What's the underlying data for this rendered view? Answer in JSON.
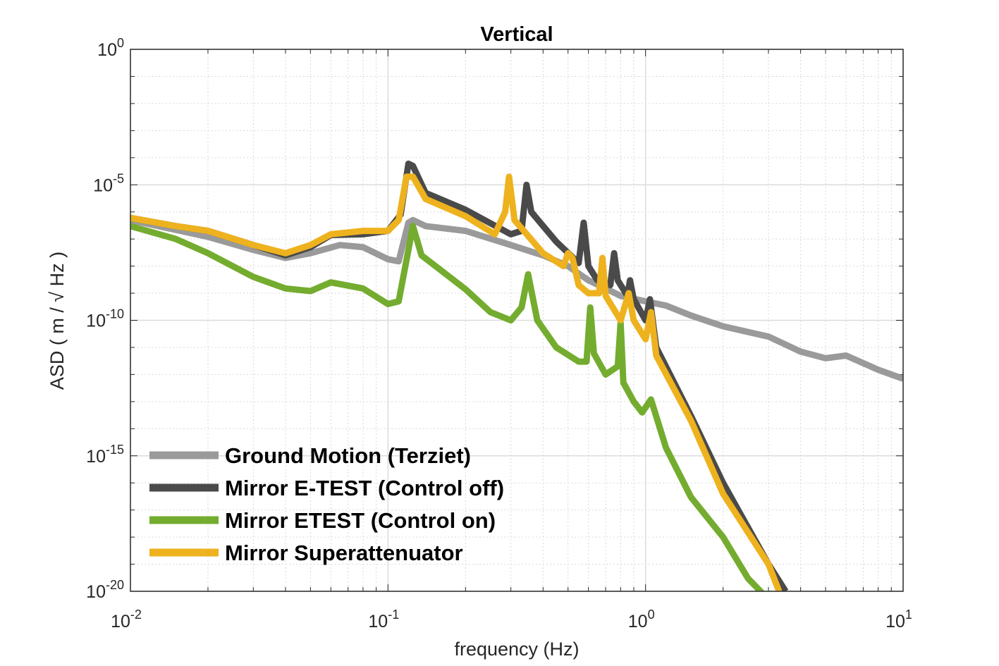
{
  "chart_data": {
    "type": "line",
    "title": "Vertical",
    "xlabel": "frequency (Hz)",
    "ylabel": "ASD ( m / √ Hz )",
    "xscale": "log",
    "yscale": "log",
    "xlim": [
      0.01,
      10
    ],
    "ylim": [
      1e-20,
      1
    ],
    "grid": true,
    "legend_position": "bottom-left",
    "x_ticks": [
      {
        "base": "10",
        "exp": "-2"
      },
      {
        "base": "10",
        "exp": "-1"
      },
      {
        "base": "10",
        "exp": "0"
      },
      {
        "base": "10",
        "exp": "1"
      }
    ],
    "y_ticks": [
      {
        "base": "10",
        "exp": "0"
      },
      {
        "base": "10",
        "exp": "-5"
      },
      {
        "base": "10",
        "exp": "-10"
      },
      {
        "base": "10",
        "exp": "-15"
      },
      {
        "base": "10",
        "exp": "-20"
      }
    ],
    "series": [
      {
        "name": "Ground Motion (Terziet)",
        "color": "#9a9a9a",
        "points": [
          [
            0.01,
            5e-07
          ],
          [
            0.014,
            2.5e-07
          ],
          [
            0.02,
            1.2e-07
          ],
          [
            0.03,
            4e-08
          ],
          [
            0.04,
            2e-08
          ],
          [
            0.05,
            3e-08
          ],
          [
            0.065,
            6e-08
          ],
          [
            0.08,
            5e-08
          ],
          [
            0.1,
            1.8e-08
          ],
          [
            0.11,
            1.5e-08
          ],
          [
            0.115,
            8e-08
          ],
          [
            0.12,
            4e-07
          ],
          [
            0.125,
            5e-07
          ],
          [
            0.14,
            3e-07
          ],
          [
            0.2,
            2e-07
          ],
          [
            0.3,
            6e-08
          ],
          [
            0.4,
            2.5e-08
          ],
          [
            0.5,
            1e-08
          ],
          [
            0.6,
            3e-09
          ],
          [
            0.7,
            1.5e-09
          ],
          [
            0.8,
            8e-10
          ],
          [
            1.0,
            5e-10
          ],
          [
            1.2,
            3.5e-10
          ],
          [
            1.5,
            1.5e-10
          ],
          [
            2.0,
            6e-11
          ],
          [
            3.0,
            2.5e-11
          ],
          [
            4.0,
            7e-12
          ],
          [
            5.0,
            4e-12
          ],
          [
            6.0,
            5e-12
          ],
          [
            8.0,
            1.5e-12
          ],
          [
            10.0,
            7e-13
          ]
        ]
      },
      {
        "name": "Mirror E-TEST (Control off)",
        "color": "#4a4a4a",
        "points": [
          [
            0.01,
            6e-07
          ],
          [
            0.015,
            3e-07
          ],
          [
            0.02,
            2e-07
          ],
          [
            0.03,
            6e-08
          ],
          [
            0.04,
            2.5e-08
          ],
          [
            0.05,
            5e-08
          ],
          [
            0.06,
            1.4e-07
          ],
          [
            0.08,
            1.5e-07
          ],
          [
            0.1,
            2e-07
          ],
          [
            0.112,
            8e-07
          ],
          [
            0.12,
            6e-05
          ],
          [
            0.125,
            5e-05
          ],
          [
            0.14,
            5e-06
          ],
          [
            0.2,
            1.2e-06
          ],
          [
            0.3,
            1.5e-07
          ],
          [
            0.33,
            2e-07
          ],
          [
            0.345,
            1e-05
          ],
          [
            0.36,
            1e-06
          ],
          [
            0.45,
            8e-08
          ],
          [
            0.55,
            1.3e-08
          ],
          [
            0.575,
            4e-07
          ],
          [
            0.6,
            1e-08
          ],
          [
            0.65,
            3e-09
          ],
          [
            0.73,
            2e-09
          ],
          [
            0.755,
            3e-08
          ],
          [
            0.78,
            3e-09
          ],
          [
            0.85,
            8e-10
          ],
          [
            0.87,
            3e-09
          ],
          [
            0.9,
            6e-10
          ],
          [
            1.0,
            1e-10
          ],
          [
            1.04,
            6e-10
          ],
          [
            1.1,
            1e-11
          ],
          [
            1.5,
            3e-14
          ],
          [
            2.0,
            1e-16
          ],
          [
            3.0,
            1e-19
          ],
          [
            3.5,
            1e-20
          ]
        ]
      },
      {
        "name": "Mirror ETEST (Control on)",
        "color": "#74ac2f",
        "points": [
          [
            0.01,
            3e-07
          ],
          [
            0.015,
            1e-07
          ],
          [
            0.02,
            3e-08
          ],
          [
            0.03,
            4e-09
          ],
          [
            0.04,
            1.5e-09
          ],
          [
            0.05,
            1.2e-09
          ],
          [
            0.06,
            2.5e-09
          ],
          [
            0.08,
            1.5e-09
          ],
          [
            0.1,
            4e-10
          ],
          [
            0.11,
            5e-10
          ],
          [
            0.125,
            3e-07
          ],
          [
            0.135,
            2.5e-08
          ],
          [
            0.2,
            1.4e-09
          ],
          [
            0.25,
            2e-10
          ],
          [
            0.3,
            1e-10
          ],
          [
            0.33,
            3e-10
          ],
          [
            0.35,
            5e-09
          ],
          [
            0.38,
            1e-10
          ],
          [
            0.45,
            1e-11
          ],
          [
            0.55,
            3e-12
          ],
          [
            0.59,
            3e-12
          ],
          [
            0.61,
            3e-10
          ],
          [
            0.63,
            6e-12
          ],
          [
            0.7,
            1e-12
          ],
          [
            0.78,
            2e-12
          ],
          [
            0.8,
            8e-11
          ],
          [
            0.82,
            5e-13
          ],
          [
            0.9,
            1e-13
          ],
          [
            0.97,
            4e-14
          ],
          [
            1.05,
            1.2e-13
          ],
          [
            1.2,
            2e-15
          ],
          [
            1.5,
            3e-17
          ],
          [
            2.0,
            1e-18
          ],
          [
            2.5,
            3e-20
          ],
          [
            3.0,
            5e-21
          ]
        ]
      },
      {
        "name": "Mirror Superattenuator",
        "color": "#eeb21e",
        "points": [
          [
            0.01,
            6e-07
          ],
          [
            0.015,
            3e-07
          ],
          [
            0.02,
            2e-07
          ],
          [
            0.03,
            6e-08
          ],
          [
            0.04,
            3e-08
          ],
          [
            0.05,
            6e-08
          ],
          [
            0.06,
            1.5e-07
          ],
          [
            0.08,
            2e-07
          ],
          [
            0.1,
            2e-07
          ],
          [
            0.11,
            5e-07
          ],
          [
            0.118,
            2e-05
          ],
          [
            0.125,
            2e-05
          ],
          [
            0.14,
            3e-06
          ],
          [
            0.2,
            7e-07
          ],
          [
            0.26,
            1.5e-07
          ],
          [
            0.285,
            1e-06
          ],
          [
            0.295,
            2e-05
          ],
          [
            0.31,
            5e-07
          ],
          [
            0.4,
            3e-08
          ],
          [
            0.48,
            1e-08
          ],
          [
            0.5,
            3e-08
          ],
          [
            0.52,
            2e-08
          ],
          [
            0.55,
            2e-09
          ],
          [
            0.6,
            1e-09
          ],
          [
            0.66,
            1e-09
          ],
          [
            0.68,
            2e-08
          ],
          [
            0.7,
            8e-10
          ],
          [
            0.8,
            1e-10
          ],
          [
            0.86,
            1e-09
          ],
          [
            0.9,
            1e-10
          ],
          [
            1.0,
            2e-11
          ],
          [
            1.05,
            2e-10
          ],
          [
            1.1,
            5e-12
          ],
          [
            1.5,
            2e-14
          ],
          [
            2.0,
            4e-17
          ],
          [
            3.0,
            1e-19
          ],
          [
            3.3,
            1e-20
          ]
        ]
      }
    ]
  }
}
